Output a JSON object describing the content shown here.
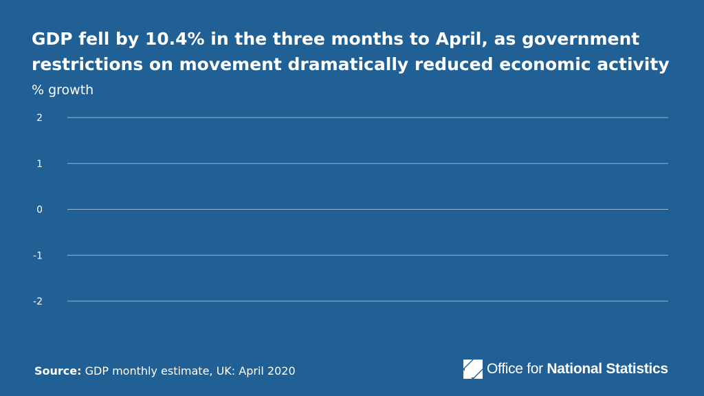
{
  "chart_data": {
    "type": "line",
    "title": "GDP fell by 10.4% in the three months to April, as government restrictions on movement dramatically reduced economic activity",
    "ylabel": "% growth",
    "xlabel": "",
    "ylim": [
      -2,
      2
    ],
    "yticks": [
      "2",
      "1",
      "0",
      "-1",
      "-2"
    ],
    "ytick_values": [
      2,
      1,
      0,
      -1,
      -2
    ],
    "grid": true,
    "series": []
  },
  "footer": {
    "source_label": "Source:",
    "source_text": "GDP monthly estimate, UK: April 2020"
  },
  "logo": {
    "text_regular": "Office for ",
    "text_bold": "National Statistics"
  },
  "colors": {
    "background": "#206095",
    "gridline": "#ffffff",
    "text": "#ffffff"
  }
}
